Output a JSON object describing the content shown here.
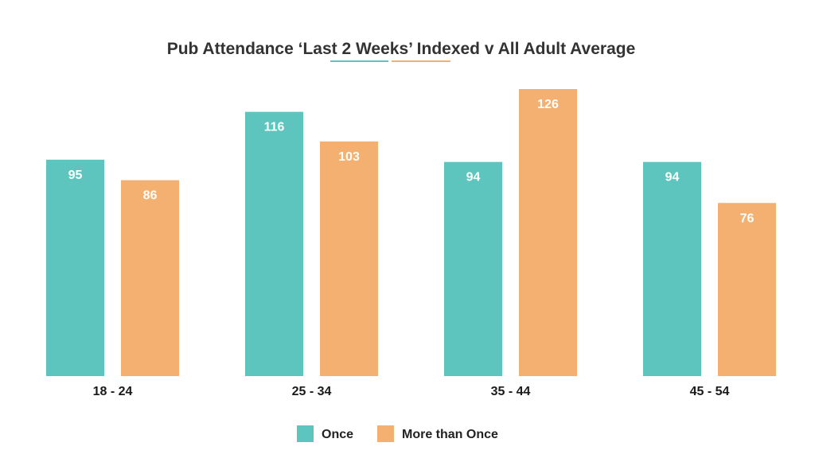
{
  "colors": {
    "once": "#5ec5be",
    "more_than_once": "#f4b070",
    "title_text": "#333333",
    "label_text": "#ffffff"
  },
  "chart_data": {
    "type": "bar",
    "title": "Pub Attendance ‘Last 2 Weeks’ Indexed v All Adult Average",
    "xlabel": "",
    "ylabel": "",
    "categories": [
      "18 - 24",
      "25 - 34",
      "35 - 44",
      "45 - 54"
    ],
    "series": [
      {
        "name": "Once",
        "values": [
          95,
          116,
          94,
          94
        ],
        "color": "#5ec5be"
      },
      {
        "name": "More than Once",
        "values": [
          86,
          103,
          126,
          76
        ],
        "color": "#f4b070"
      }
    ],
    "ylim": [
      0,
      126
    ],
    "grid": false,
    "data_labels": true,
    "legend": {
      "placement": "bottom-center"
    }
  }
}
